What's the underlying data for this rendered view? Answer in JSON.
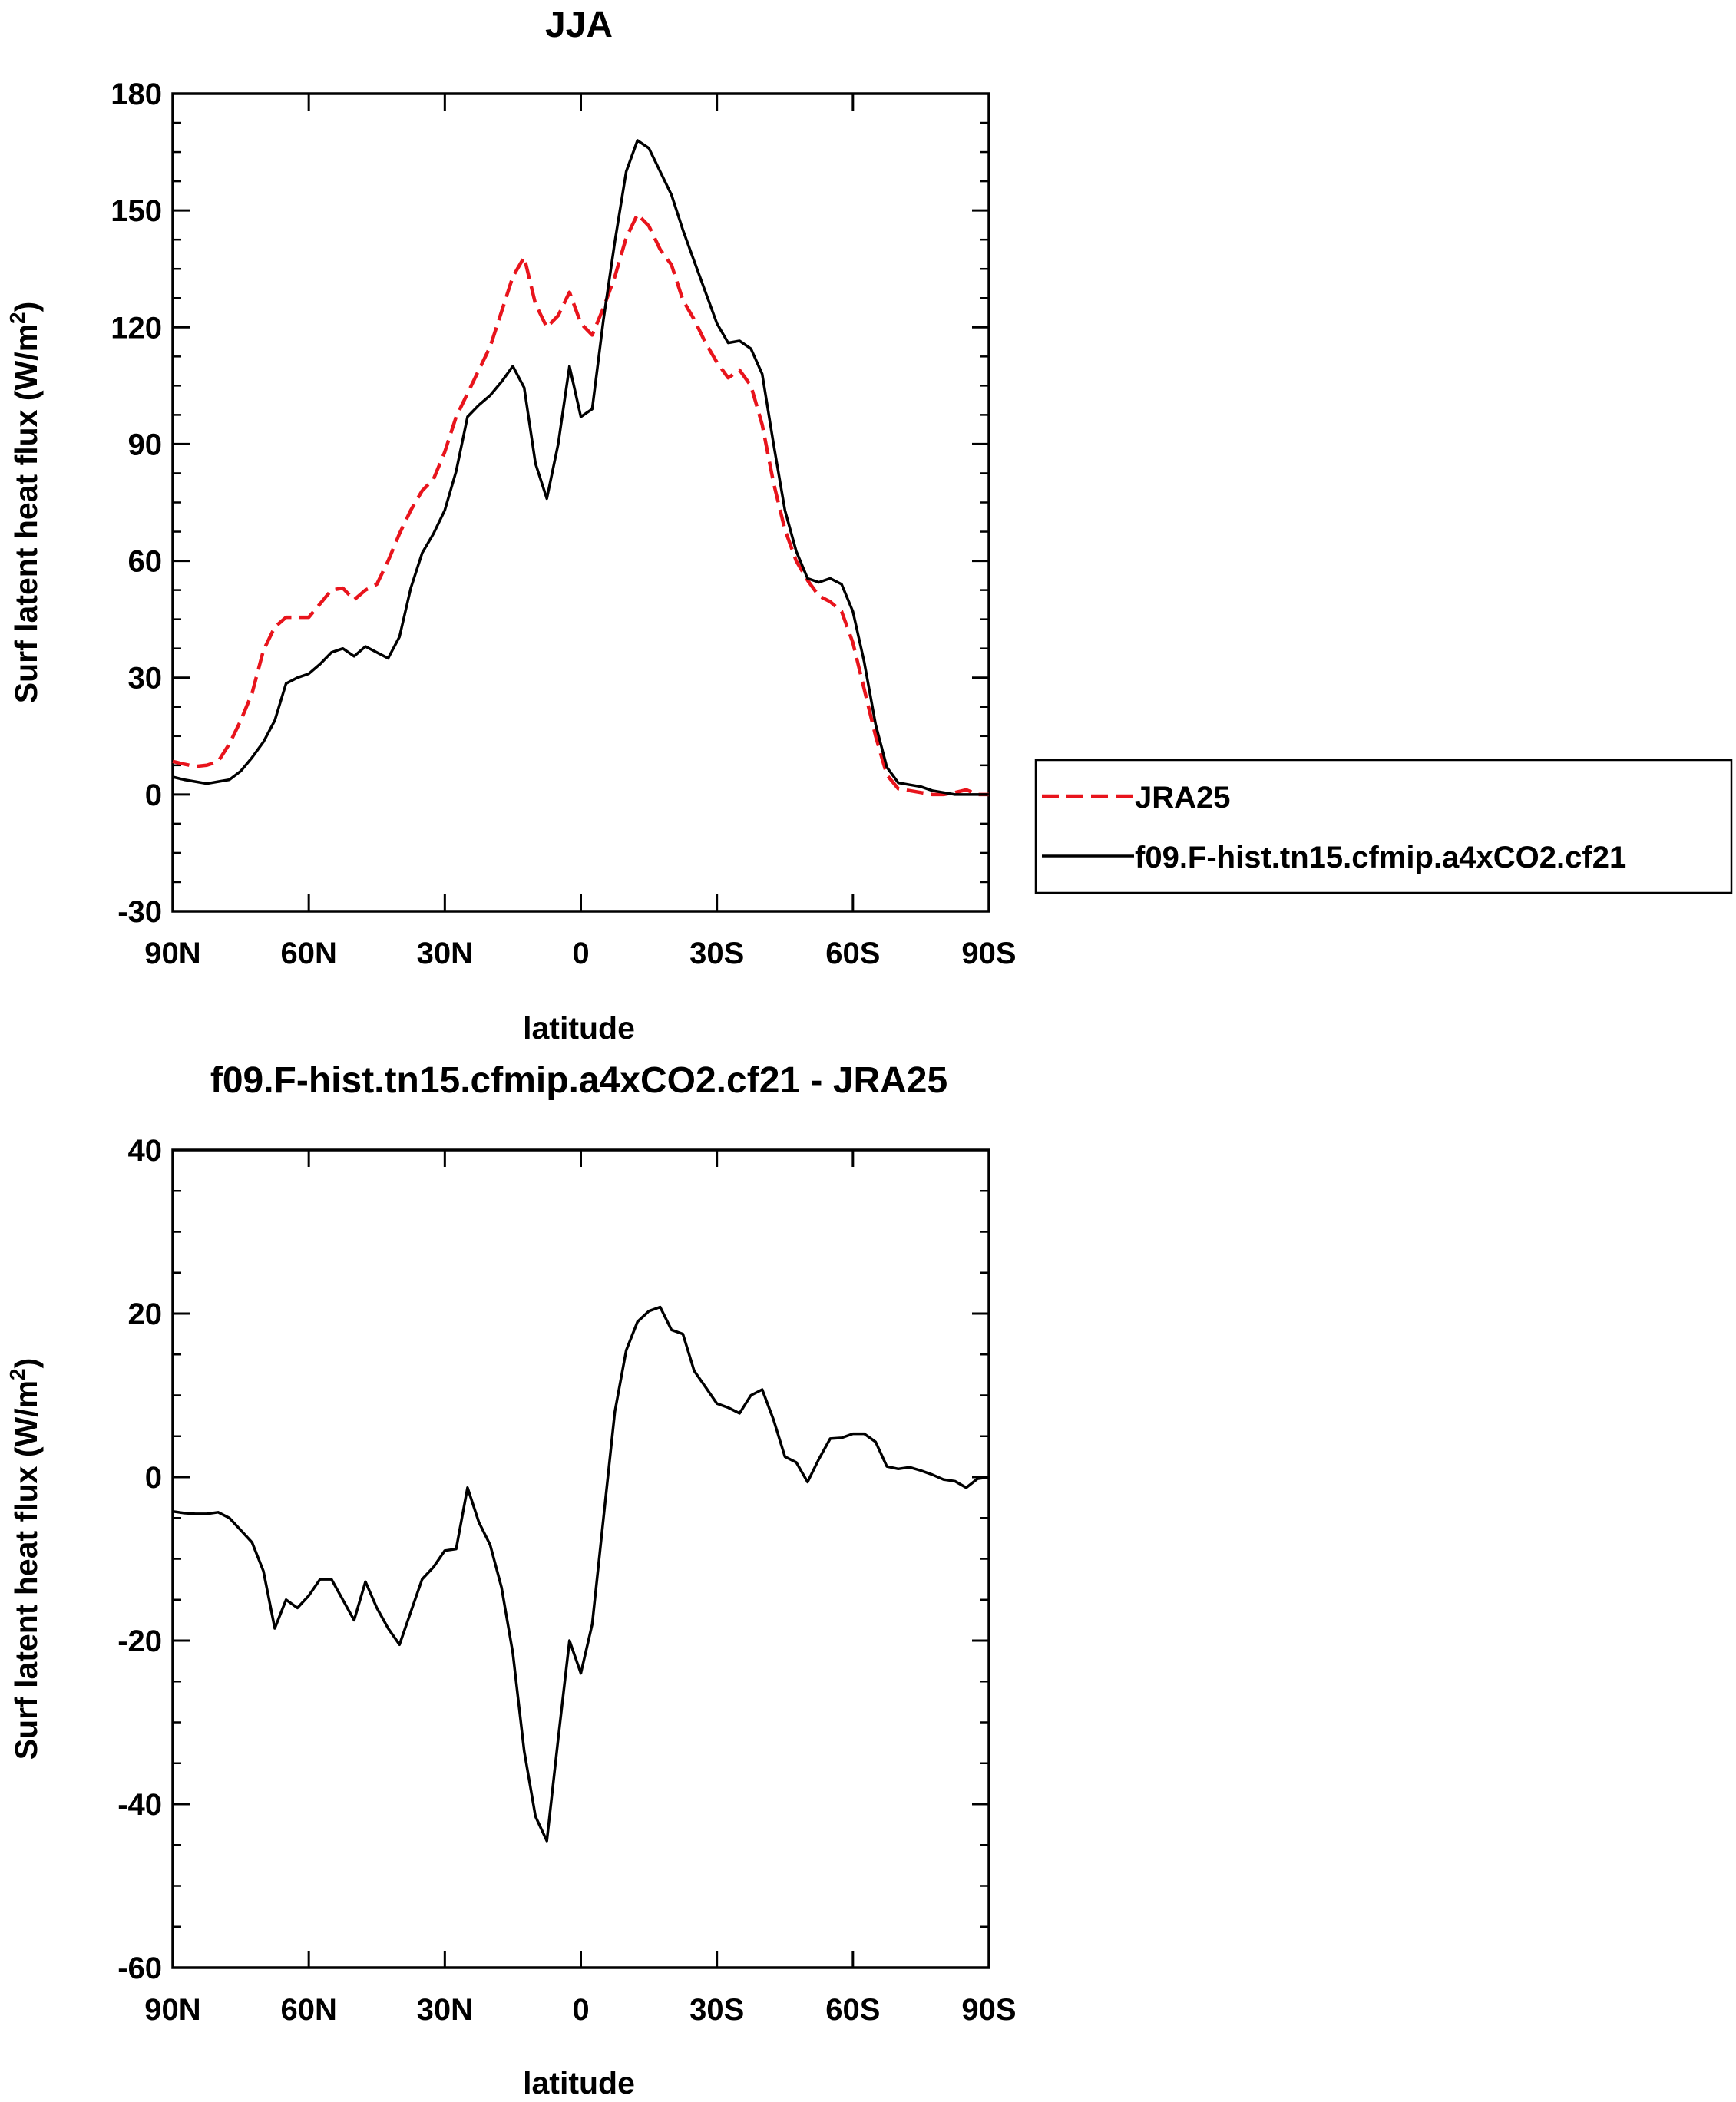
{
  "panels": [
    {
      "title": "JJA",
      "ylabel_main": "Surf latent heat flux (W/m",
      "ylabel_sup": "2",
      "ylabel_end": ")",
      "xlabel": "latitude",
      "ylim": [
        -30,
        180
      ],
      "yticks": [
        -30,
        0,
        30,
        60,
        90,
        120,
        150,
        180
      ],
      "ytick_labels": [
        "-30",
        "0",
        "30",
        "60",
        "90",
        "120",
        "150",
        "180"
      ],
      "xticks": [
        -90,
        -60,
        -30,
        0,
        30,
        60,
        90
      ],
      "xtick_labels": [
        "90N",
        "60N",
        "30N",
        "0",
        "30S",
        "60S",
        "90S"
      ]
    },
    {
      "title": "f09.F-hist.tn15.cfmip.a4xCO2.cf21 - JRA25",
      "ylabel_main": "Surf latent heat flux (W/m",
      "ylabel_sup": "2",
      "ylabel_end": ")",
      "xlabel": "latitude",
      "ylim": [
        -60,
        40
      ],
      "yticks": [
        -60,
        -40,
        -20,
        0,
        20,
        40
      ],
      "ytick_labels": [
        "-60",
        "-40",
        "-20",
        "0",
        "20",
        "40"
      ],
      "xticks": [
        -90,
        -60,
        -30,
        0,
        30,
        60,
        90
      ],
      "xtick_labels": [
        "90N",
        "60N",
        "30N",
        "0",
        "30S",
        "60S",
        "90S"
      ]
    }
  ],
  "legend": {
    "entries": [
      {
        "label": "JRA25",
        "color": "#e8141c",
        "dash": true
      },
      {
        "label": "f09.F-hist.tn15.cfmip.a4xCO2.cf21",
        "color": "#000000",
        "dash": false
      }
    ]
  },
  "chart_data": [
    {
      "type": "line",
      "title": "JJA",
      "xlabel": "latitude",
      "ylabel": "Surf latent heat flux (W/m2)",
      "xlim": [
        -90,
        90
      ],
      "ylim": [
        -30,
        180
      ],
      "x_note": "negative = N, positive = S",
      "series": [
        {
          "name": "JRA25",
          "color": "#e8141c",
          "style": "dashed",
          "points": [
            [
              -90,
              8.5
            ],
            [
              -87.5,
              7.8
            ],
            [
              -85,
              7.2
            ],
            [
              -82.5,
              7.5
            ],
            [
              -80,
              8.5
            ],
            [
              -77.5,
              13
            ],
            [
              -75,
              19
            ],
            [
              -72.5,
              26
            ],
            [
              -70,
              37
            ],
            [
              -67.5,
              43
            ],
            [
              -65,
              45.5
            ],
            [
              -62.5,
              45.5
            ],
            [
              -60,
              45.5
            ],
            [
              -57.5,
              49
            ],
            [
              -55,
              52.5
            ],
            [
              -52.5,
              53
            ],
            [
              -50,
              50
            ],
            [
              -47.5,
              52.5
            ],
            [
              -45,
              54
            ],
            [
              -42.5,
              60
            ],
            [
              -40,
              67
            ],
            [
              -37.5,
              73
            ],
            [
              -35,
              78
            ],
            [
              -32.5,
              81
            ],
            [
              -30,
              88
            ],
            [
              -27.5,
              97
            ],
            [
              -25,
              103
            ],
            [
              -22.5,
              109
            ],
            [
              -20,
              115
            ],
            [
              -17.5,
              124
            ],
            [
              -15,
              133
            ],
            [
              -12.5,
              138
            ],
            [
              -10,
              126
            ],
            [
              -7.5,
              120
            ],
            [
              -5,
              123
            ],
            [
              -2.5,
              129
            ],
            [
              0,
              121
            ],
            [
              2.5,
              118
            ],
            [
              5,
              125
            ],
            [
              7.5,
              133
            ],
            [
              10,
              143
            ],
            [
              12.5,
              149
            ],
            [
              15,
              146
            ],
            [
              17.5,
              140
            ],
            [
              20,
              136
            ],
            [
              22.5,
              127
            ],
            [
              25,
              122
            ],
            [
              27.5,
              116
            ],
            [
              30,
              111
            ],
            [
              32.5,
              107
            ],
            [
              35,
              109
            ],
            [
              37.5,
              105
            ],
            [
              40,
              95
            ],
            [
              42.5,
              80
            ],
            [
              45,
              68
            ],
            [
              47.5,
              60
            ],
            [
              50,
              55
            ],
            [
              52.5,
              51
            ],
            [
              55,
              49.5
            ],
            [
              57.5,
              47
            ],
            [
              60,
              39
            ],
            [
              62.5,
              27
            ],
            [
              65,
              15
            ],
            [
              67.5,
              5
            ],
            [
              70,
              1.5
            ],
            [
              72.5,
              1
            ],
            [
              75,
              0.5
            ],
            [
              77.5,
              0
            ],
            [
              80,
              0
            ],
            [
              82.5,
              0.5
            ],
            [
              85,
              1.2
            ],
            [
              87.5,
              0
            ],
            [
              90,
              0
            ]
          ]
        },
        {
          "name": "f09.F-hist.tn15.cfmip.a4xCO2.cf21",
          "color": "#000000",
          "style": "solid",
          "points": [
            [
              -90,
              4.5
            ],
            [
              -87.5,
              3.8
            ],
            [
              -85,
              3.3
            ],
            [
              -82.5,
              2.8
            ],
            [
              -80,
              3.3
            ],
            [
              -77.5,
              3.8
            ],
            [
              -75,
              6
            ],
            [
              -72.5,
              9.5
            ],
            [
              -70,
              13.5
            ],
            [
              -67.5,
              19
            ],
            [
              -65,
              28.5
            ],
            [
              -62.5,
              30
            ],
            [
              -60,
              31
            ],
            [
              -57.5,
              33.5
            ],
            [
              -55,
              36.5
            ],
            [
              -52.5,
              37.5
            ],
            [
              -50,
              35.5
            ],
            [
              -47.5,
              38
            ],
            [
              -45,
              36.5
            ],
            [
              -42.5,
              35
            ],
            [
              -40,
              40.5
            ],
            [
              -37.5,
              53
            ],
            [
              -35,
              62
            ],
            [
              -32.5,
              67
            ],
            [
              -30,
              73
            ],
            [
              -27.5,
              83
            ],
            [
              -25,
              97
            ],
            [
              -22.5,
              100
            ],
            [
              -20,
              102.5
            ],
            [
              -17.5,
              106
            ],
            [
              -15,
              110
            ],
            [
              -12.5,
              104.5
            ],
            [
              -10,
              85
            ],
            [
              -7.5,
              76
            ],
            [
              -5,
              90
            ],
            [
              -2.5,
              110
            ],
            [
              0,
              97
            ],
            [
              2.5,
              99
            ],
            [
              5,
              122
            ],
            [
              7.5,
              142
            ],
            [
              10,
              160
            ],
            [
              12.5,
              168
            ],
            [
              15,
              166
            ],
            [
              17.5,
              160
            ],
            [
              20,
              154
            ],
            [
              22.5,
              145
            ],
            [
              25,
              137
            ],
            [
              27.5,
              129
            ],
            [
              30,
              121
            ],
            [
              32.5,
              116
            ],
            [
              35,
              116.5
            ],
            [
              37.5,
              114.5
            ],
            [
              40,
              108
            ],
            [
              42.5,
              90
            ],
            [
              45,
              73
            ],
            [
              47.5,
              62.5
            ],
            [
              50,
              55.5
            ],
            [
              52.5,
              54.5
            ],
            [
              55,
              55.5
            ],
            [
              57.5,
              54
            ],
            [
              60,
              47
            ],
            [
              62.5,
              34
            ],
            [
              65,
              18
            ],
            [
              67.5,
              7
            ],
            [
              70,
              3
            ],
            [
              72.5,
              2.5
            ],
            [
              75,
              2
            ],
            [
              77.5,
              1
            ],
            [
              80,
              0.5
            ],
            [
              82.5,
              0
            ],
            [
              85,
              0
            ],
            [
              87.5,
              0
            ],
            [
              90,
              0
            ]
          ]
        }
      ]
    },
    {
      "type": "line",
      "title": "f09.F-hist.tn15.cfmip.a4xCO2.cf21 - JRA25",
      "xlabel": "latitude",
      "ylabel": "Surf latent heat flux (W/m2)",
      "xlim": [
        -90,
        90
      ],
      "ylim": [
        -60,
        40
      ],
      "series": [
        {
          "color": "#000000",
          "style": "solid",
          "points": [
            [
              -90,
              -4.2
            ],
            [
              -87.5,
              -4.4
            ],
            [
              -85,
              -4.5
            ],
            [
              -82.5,
              -4.5
            ],
            [
              -80,
              -4.3
            ],
            [
              -77.5,
              -5
            ],
            [
              -75,
              -6.5
            ],
            [
              -72.5,
              -8
            ],
            [
              -70,
              -11.5
            ],
            [
              -67.5,
              -18.5
            ],
            [
              -65,
              -15
            ],
            [
              -62.5,
              -16
            ],
            [
              -60,
              -14.5
            ],
            [
              -57.5,
              -12.5
            ],
            [
              -55,
              -12.5
            ],
            [
              -52.5,
              -15
            ],
            [
              -50,
              -17.5
            ],
            [
              -47.5,
              -12.8
            ],
            [
              -45,
              -16
            ],
            [
              -42.5,
              -18.5
            ],
            [
              -40,
              -20.5
            ],
            [
              -37.5,
              -16.5
            ],
            [
              -35,
              -12.5
            ],
            [
              -32.5,
              -11
            ],
            [
              -30,
              -9
            ],
            [
              -27.5,
              -8.8
            ],
            [
              -25,
              -1.3
            ],
            [
              -22.5,
              -5.5
            ],
            [
              -20,
              -8.3
            ],
            [
              -17.5,
              -13.5
            ],
            [
              -15,
              -21.5
            ],
            [
              -12.5,
              -33.5
            ],
            [
              -10,
              -41.5
            ],
            [
              -7.5,
              -44.5
            ],
            [
              -5,
              -32
            ],
            [
              -2.5,
              -20
            ],
            [
              0,
              -24
            ],
            [
              2.5,
              -18
            ],
            [
              5,
              -5
            ],
            [
              7.5,
              8
            ],
            [
              10,
              15.5
            ],
            [
              12.5,
              19
            ],
            [
              15,
              20.3
            ],
            [
              17.5,
              20.8
            ],
            [
              20,
              18
            ],
            [
              22.5,
              17.5
            ],
            [
              25,
              13
            ],
            [
              27.5,
              11
            ],
            [
              30,
              9
            ],
            [
              32.5,
              8.5
            ],
            [
              35,
              7.8
            ],
            [
              37.5,
              10
            ],
            [
              40,
              10.7
            ],
            [
              42.5,
              7
            ],
            [
              45,
              2.5
            ],
            [
              47.5,
              1.8
            ],
            [
              50,
              -0.6
            ],
            [
              52.5,
              2.2
            ],
            [
              55,
              4.7
            ],
            [
              57.5,
              4.8
            ],
            [
              60,
              5.3
            ],
            [
              62.5,
              5.3
            ],
            [
              65,
              4.3
            ],
            [
              67.5,
              1.3
            ],
            [
              70,
              1
            ],
            [
              72.5,
              1.2
            ],
            [
              75,
              0.8
            ],
            [
              77.5,
              0.3
            ],
            [
              80,
              -0.3
            ],
            [
              82.5,
              -0.5
            ],
            [
              85,
              -1.3
            ],
            [
              87.5,
              -0.2
            ],
            [
              90,
              0
            ]
          ]
        }
      ]
    }
  ]
}
